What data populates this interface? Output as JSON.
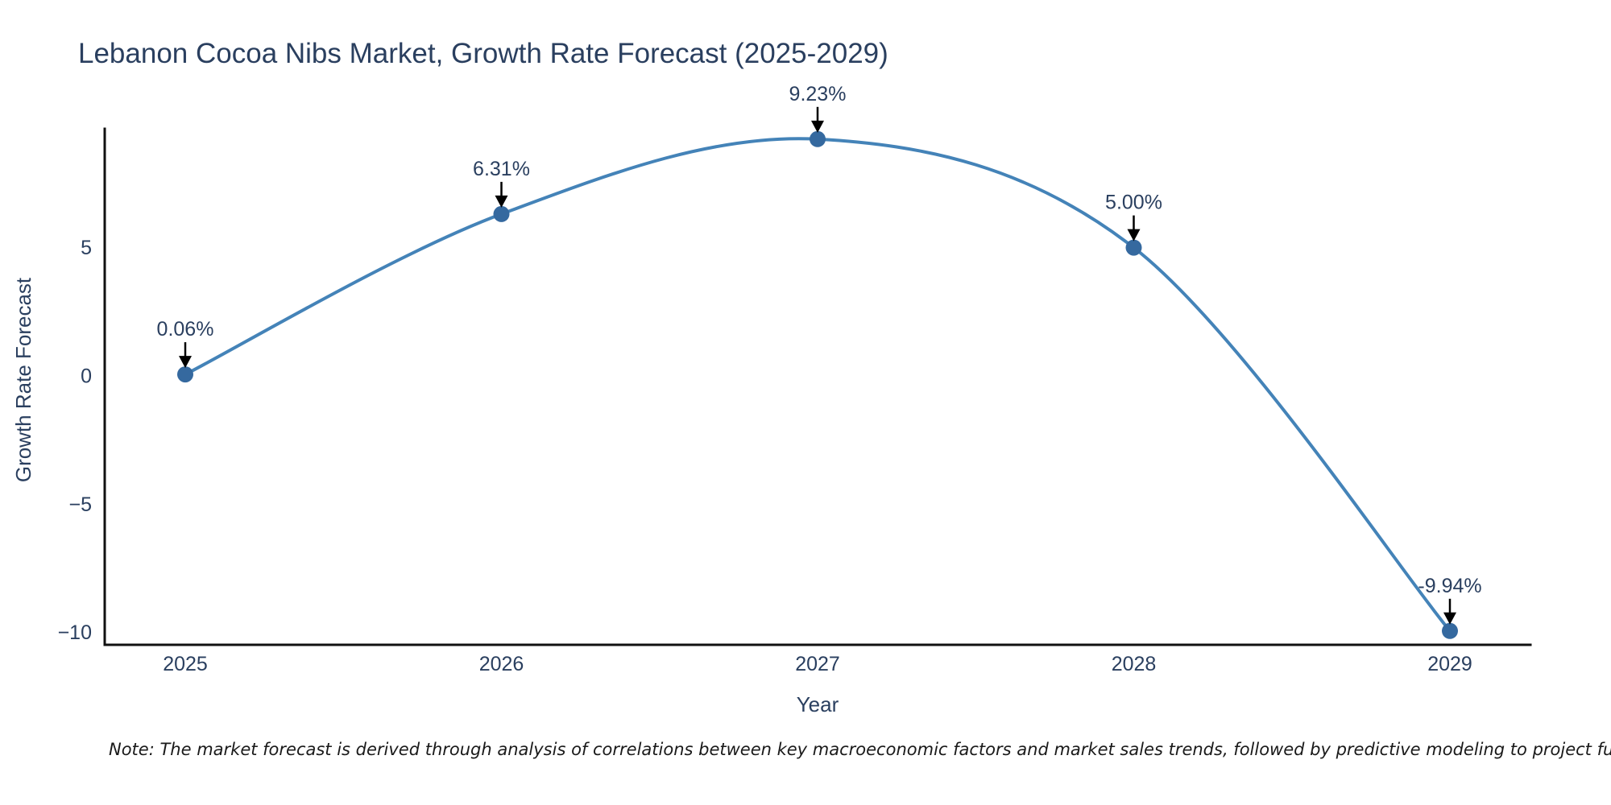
{
  "figure": {
    "title": "Lebanon Cocoa Nibs Market, Growth Rate Forecast (2025-2029)",
    "x_axis_title": "Year",
    "y_axis_title": "Growth Rate Forecast",
    "note": "Note: The market forecast is derived through analysis of correlations between key macroeconomic factors and market sales trends, followed by predictive modeling to project future sales",
    "colors": {
      "line": "#4483b8",
      "marker": "#35699f",
      "axis": "#111111",
      "text": "#2a3f5f",
      "note_text": "#1a1a1a",
      "arrow": "#000000",
      "background": "#ffffff"
    }
  },
  "chart_data": {
    "type": "line",
    "line_shape": "spline",
    "title": "Lebanon Cocoa Nibs Market, Growth Rate Forecast (2025-2029)",
    "xlabel": "Year",
    "ylabel": "Growth Rate Forecast",
    "x": [
      2025,
      2026,
      2027,
      2028,
      2029
    ],
    "series": [
      {
        "name": "Growth Rate Forecast",
        "values": [
          0.06,
          6.31,
          9.23,
          5.0,
          -9.94
        ]
      }
    ],
    "point_labels": [
      "0.06%",
      "6.31%",
      "9.23%",
      "5.00%",
      "-9.94%"
    ],
    "xtick_labels": [
      "2025",
      "2026",
      "2027",
      "2028",
      "2029"
    ],
    "ytick_values": [
      5,
      0,
      -5,
      -10
    ],
    "ytick_labels": [
      "5",
      "0",
      "−5",
      "−10"
    ],
    "xlim": [
      2024.75,
      2029.25
    ],
    "ylim": [
      -10.5,
      9.7
    ],
    "grid": false,
    "legend": "none",
    "annotations_have_arrows": true
  }
}
